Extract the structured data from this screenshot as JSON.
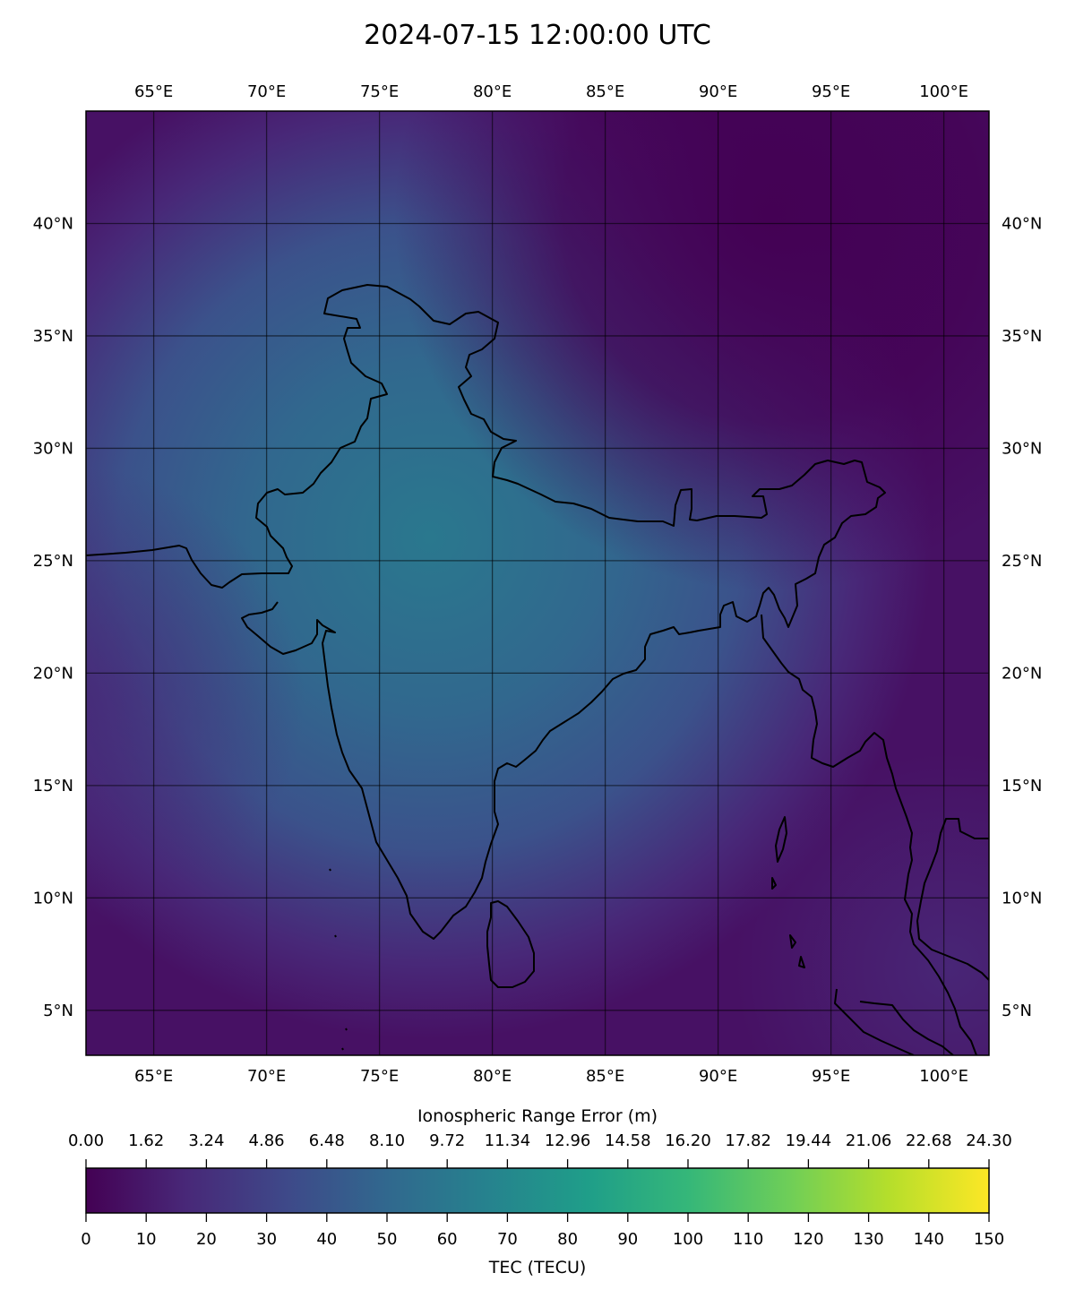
{
  "title": "2024-07-15 12:00:00 UTC",
  "map": {
    "lon_range": [
      62,
      102
    ],
    "lat_range": [
      3,
      45
    ],
    "lon_ticks": [
      {
        "value": 65,
        "label": "65°E"
      },
      {
        "value": 70,
        "label": "70°E"
      },
      {
        "value": 75,
        "label": "75°E"
      },
      {
        "value": 80,
        "label": "80°E"
      },
      {
        "value": 85,
        "label": "85°E"
      },
      {
        "value": 90,
        "label": "90°E"
      },
      {
        "value": 95,
        "label": "95°E"
      },
      {
        "value": 100,
        "label": "100°E"
      }
    ],
    "lat_ticks": [
      {
        "value": 5,
        "label": "5°N"
      },
      {
        "value": 10,
        "label": "10°N"
      },
      {
        "value": 15,
        "label": "15°N"
      },
      {
        "value": 20,
        "label": "20°N"
      },
      {
        "value": 25,
        "label": "25°N"
      },
      {
        "value": 30,
        "label": "30°N"
      },
      {
        "value": 35,
        "label": "35°N"
      },
      {
        "value": 40,
        "label": "40°N"
      }
    ],
    "grid": true,
    "field_colors": {
      "max": "#2a788e",
      "mid": "#3b528b",
      "low": "#482878",
      "min": "#440154"
    }
  },
  "colorbar": {
    "label_top": "Ionospheric Range Error (m)",
    "label_bottom": "TEC (TECU)",
    "range": [
      0,
      150
    ],
    "ticks_top": [
      "0.00",
      "1.62",
      "3.24",
      "4.86",
      "6.48",
      "8.10",
      "9.72",
      "11.34",
      "12.96",
      "14.58",
      "16.20",
      "17.82",
      "19.44",
      "21.06",
      "22.68",
      "24.30"
    ],
    "ticks_bottom": [
      "0",
      "10",
      "20",
      "30",
      "40",
      "50",
      "60",
      "70",
      "80",
      "90",
      "100",
      "110",
      "120",
      "130",
      "140",
      "150"
    ],
    "colormap": "viridis",
    "stops": [
      "#440154",
      "#482878",
      "#3e4989",
      "#31688e",
      "#26828e",
      "#1f9e89",
      "#35b779",
      "#6ece58",
      "#b5de2b",
      "#fde725"
    ]
  }
}
